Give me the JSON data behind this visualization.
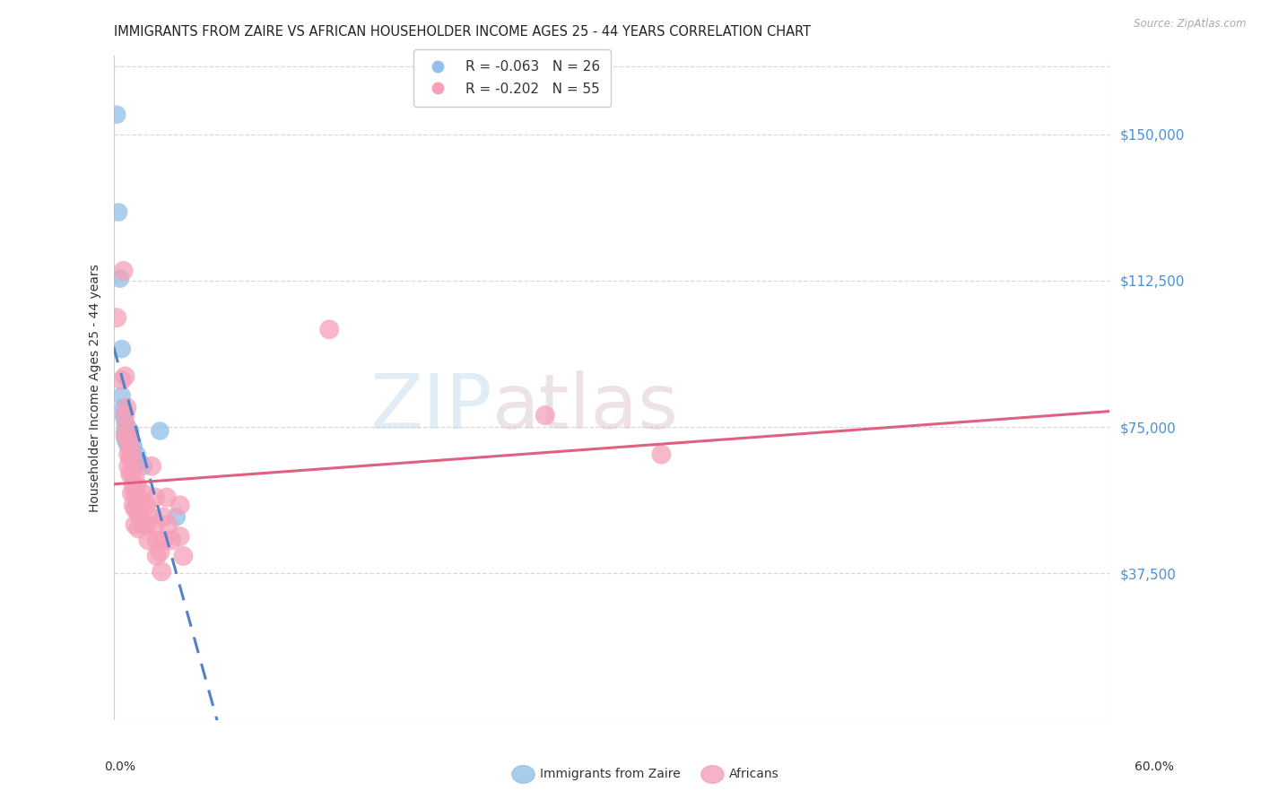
{
  "title": "IMMIGRANTS FROM ZAIRE VS AFRICAN HOUSEHOLDER INCOME AGES 25 - 44 YEARS CORRELATION CHART",
  "source": "Source: ZipAtlas.com",
  "ylabel": "Householder Income Ages 25 - 44 years",
  "ytick_values": [
    37500,
    75000,
    112500,
    150000
  ],
  "ytick_labels": [
    "$37,500",
    "$75,000",
    "$112,500",
    "$150,000"
  ],
  "ymin": 0,
  "ymax": 170000,
  "xmin": 0.0,
  "xmax": 0.6,
  "zaire_color": "#92c0e8",
  "africans_color": "#f5a0b8",
  "zaire_line_color": "#5580c8",
  "africans_line_color": "#e06080",
  "axis_tick_color": "#4a90d9",
  "grid_color": "#d8d8d8",
  "title_color": "#222222",
  "source_color": "#aaaaaa",
  "background_color": "#ffffff",
  "watermark_zip": "ZIP",
  "watermark_atlas": "atlas",
  "zaire_R": "-0.063",
  "zaire_N": "26",
  "africans_R": "-0.202",
  "africans_N": "55",
  "zaire_points": [
    [
      0.002,
      155000
    ],
    [
      0.004,
      113000
    ],
    [
      0.005,
      95000
    ],
    [
      0.005,
      83000
    ],
    [
      0.006,
      80000
    ],
    [
      0.006,
      78000
    ],
    [
      0.007,
      76000
    ],
    [
      0.007,
      74000
    ],
    [
      0.007,
      72000
    ],
    [
      0.008,
      75000
    ],
    [
      0.008,
      73000
    ],
    [
      0.008,
      71000
    ],
    [
      0.009,
      72000
    ],
    [
      0.009,
      70000
    ],
    [
      0.01,
      74000
    ],
    [
      0.01,
      72000
    ],
    [
      0.01,
      70000
    ],
    [
      0.011,
      71000
    ],
    [
      0.011,
      69000
    ],
    [
      0.012,
      70000
    ],
    [
      0.014,
      68000
    ],
    [
      0.016,
      66000
    ],
    [
      0.018,
      65000
    ],
    [
      0.028,
      74000
    ],
    [
      0.038,
      52000
    ],
    [
      0.003,
      130000
    ]
  ],
  "africans_points": [
    [
      0.002,
      103000
    ],
    [
      0.005,
      87000
    ],
    [
      0.006,
      115000
    ],
    [
      0.007,
      88000
    ],
    [
      0.007,
      78000
    ],
    [
      0.007,
      73000
    ],
    [
      0.008,
      80000
    ],
    [
      0.008,
      75000
    ],
    [
      0.009,
      72000
    ],
    [
      0.009,
      68000
    ],
    [
      0.009,
      65000
    ],
    [
      0.01,
      70000
    ],
    [
      0.01,
      67000
    ],
    [
      0.01,
      63000
    ],
    [
      0.011,
      68000
    ],
    [
      0.011,
      63000
    ],
    [
      0.011,
      58000
    ],
    [
      0.012,
      65000
    ],
    [
      0.012,
      60000
    ],
    [
      0.012,
      55000
    ],
    [
      0.013,
      62000
    ],
    [
      0.013,
      58000
    ],
    [
      0.013,
      54000
    ],
    [
      0.013,
      50000
    ],
    [
      0.014,
      60000
    ],
    [
      0.014,
      56000
    ],
    [
      0.015,
      57000
    ],
    [
      0.015,
      53000
    ],
    [
      0.015,
      49000
    ],
    [
      0.016,
      52000
    ],
    [
      0.017,
      55000
    ],
    [
      0.018,
      58000
    ],
    [
      0.018,
      50000
    ],
    [
      0.02,
      55000
    ],
    [
      0.02,
      50000
    ],
    [
      0.021,
      46000
    ],
    [
      0.022,
      52000
    ],
    [
      0.023,
      65000
    ],
    [
      0.025,
      57000
    ],
    [
      0.025,
      50000
    ],
    [
      0.026,
      46000
    ],
    [
      0.026,
      42000
    ],
    [
      0.028,
      43000
    ],
    [
      0.029,
      38000
    ],
    [
      0.03,
      52000
    ],
    [
      0.03,
      46000
    ],
    [
      0.032,
      57000
    ],
    [
      0.033,
      50000
    ],
    [
      0.035,
      46000
    ],
    [
      0.04,
      55000
    ],
    [
      0.04,
      47000
    ],
    [
      0.042,
      42000
    ],
    [
      0.13,
      100000
    ],
    [
      0.26,
      78000
    ],
    [
      0.33,
      68000
    ]
  ]
}
